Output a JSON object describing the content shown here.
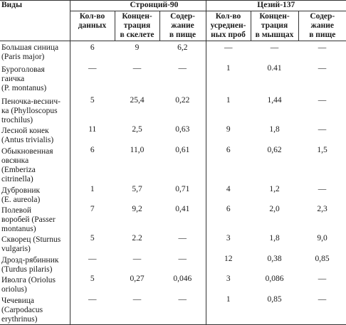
{
  "header": {
    "species_col": "Виды",
    "groups": [
      "Стронций-90",
      "Цезий-137"
    ],
    "subcols": [
      [
        "Кол-во",
        "данных"
      ],
      [
        "Концен-",
        "трация",
        "в скелете"
      ],
      [
        "Содер-",
        "жание",
        "в пище"
      ],
      [
        "Кол-во",
        "усреднен-",
        "ных проб"
      ],
      [
        "Концен-",
        "трация",
        "в мышцах"
      ],
      [
        "Содер-",
        "жание",
        "в пище"
      ]
    ]
  },
  "rows": [
    {
      "name": [
        "Большая синица",
        "(Paris major)"
      ],
      "values": [
        "6",
        "9",
        "6,2",
        "—",
        "—",
        "—"
      ]
    },
    {
      "name": [
        "Буроголовая",
        "гаичка",
        "(P. montanus)"
      ],
      "values": [
        "—",
        "—",
        "—",
        "1",
        "0.41",
        "—"
      ]
    },
    {
      "name": [
        "Пеночка-веснич-",
        "ка (Phylloscopus",
        "trochilus)"
      ],
      "values": [
        "5",
        "25,4",
        "0,22",
        "1",
        "1,44",
        "—"
      ]
    },
    {
      "name": [
        "Лесной конек",
        "(Antus trivialis)"
      ],
      "values": [
        "11",
        "2,5",
        "0,63",
        "9",
        "1,8",
        "—"
      ]
    },
    {
      "name": [
        "Обыкновенная",
        "овсянка",
        "(Emberiza",
        "citrinella)"
      ],
      "values": [
        "6",
        "11,0",
        "0,61",
        "6",
        "0,62",
        "1,5"
      ]
    },
    {
      "name": [
        "Дубровник",
        "(E. aureola)"
      ],
      "values": [
        "1",
        "5,7",
        "0,71",
        "4",
        "1,2",
        "—"
      ]
    },
    {
      "name": [
        "Полевой",
        "воробей (Passer",
        "montanus)"
      ],
      "values": [
        "7",
        "9,2",
        "0,41",
        "6",
        "2,0",
        "2,3"
      ]
    },
    {
      "name": [
        "Скворец (Sturnus",
        "vulgaris)"
      ],
      "values": [
        "5",
        "2.2",
        "—",
        "3",
        "1,8",
        "9,0"
      ]
    },
    {
      "name": [
        "Дрозд-рябинник",
        "(Turdus pilaris)"
      ],
      "values": [
        "—",
        "—",
        "—",
        "12",
        "0,38",
        "0,85"
      ]
    },
    {
      "name": [
        "Иволга (Oriolus",
        "oriolus)"
      ],
      "values": [
        "5",
        "0,27",
        "0,046",
        "3",
        "0,086",
        "—"
      ]
    },
    {
      "name": [
        "Чечевица",
        "(Carpodacus",
        "erythrinus)"
      ],
      "values": [
        "—",
        "—",
        "—",
        "1",
        "0,85",
        "—"
      ]
    }
  ]
}
